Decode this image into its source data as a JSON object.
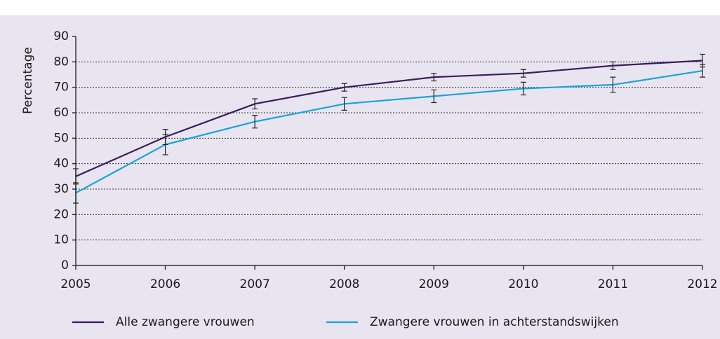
{
  "chart_data": {
    "type": "line",
    "y_label": "Percentage",
    "x": [
      2005,
      2006,
      2007,
      2008,
      2009,
      2010,
      2011,
      2012
    ],
    "series": [
      {
        "name": "Alle zwangere vrouwen",
        "color": "#3a1c5c",
        "values": [
          35,
          50.5,
          63.5,
          70,
          74,
          75.5,
          78.5,
          80.5
        ],
        "errors": [
          3,
          3,
          2,
          1.5,
          1.5,
          1.5,
          1.5,
          2.5
        ]
      },
      {
        "name": "Zwangere vrouwen in achterstandswijken",
        "color": "#1aa3dc",
        "values": [
          28.5,
          47.5,
          56.5,
          63.5,
          66.5,
          69.5,
          71,
          76.5
        ],
        "errors": [
          4,
          4,
          2.5,
          2.5,
          2.5,
          2.5,
          3,
          2.5
        ]
      }
    ],
    "xlim": [
      2005,
      2012
    ],
    "xticks": [
      2005,
      2006,
      2007,
      2008,
      2009,
      2010,
      2011,
      2012
    ],
    "ylim": [
      0,
      90
    ],
    "yticks": [
      0,
      10,
      20,
      30,
      40,
      50,
      60,
      70,
      80,
      90
    ],
    "grid": true,
    "legend": "bottom"
  }
}
